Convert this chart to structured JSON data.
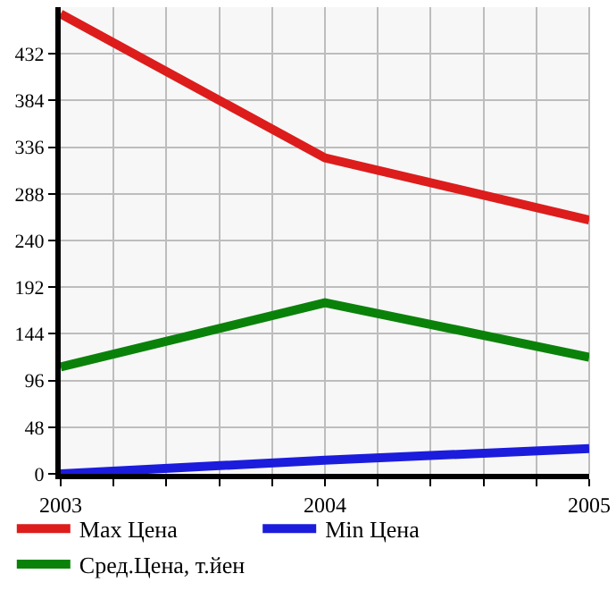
{
  "chart_data": {
    "type": "line",
    "x": [
      2003,
      2004,
      2005
    ],
    "series": [
      {
        "name": "Max Цена",
        "color": "#dd1c1c",
        "values": [
          473,
          325,
          261
        ]
      },
      {
        "name": "Min Цена",
        "color": "#1c1cdd",
        "values": [
          0,
          14,
          26
        ]
      },
      {
        "name": "Сред.Цена, т.йен",
        "color": "#0a820a",
        "values": [
          110,
          176,
          120
        ]
      }
    ],
    "xlim": [
      2003,
      2005
    ],
    "xticks": [
      2003,
      {
        "value": 2003.2,
        "label": null
      },
      {
        "value": 2003.4,
        "label": null
      },
      {
        "value": 2003.6,
        "label": null
      },
      {
        "value": 2003.8,
        "label": null
      },
      2004,
      {
        "value": 2004.2,
        "label": null
      },
      {
        "value": 2004.4,
        "label": null
      },
      {
        "value": 2004.6,
        "label": null
      },
      {
        "value": 2004.8,
        "label": null
      },
      2005
    ],
    "ylim": [
      0,
      480
    ],
    "yticks": [
      0,
      48,
      96,
      144,
      192,
      240,
      288,
      336,
      384,
      432
    ],
    "grid": true,
    "legend": "bottom",
    "marker": "none",
    "line_style": "solid"
  }
}
